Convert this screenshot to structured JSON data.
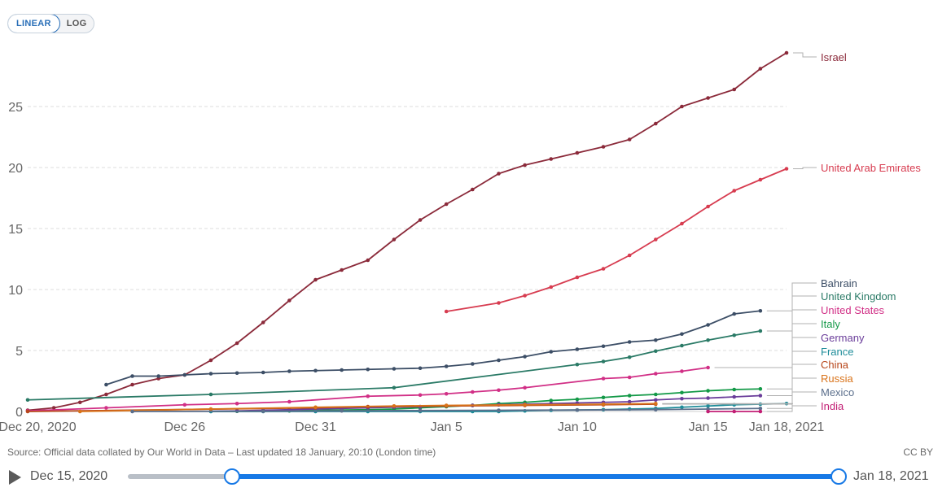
{
  "scale_toggle": {
    "linear": "LINEAR",
    "log": "LOG",
    "selected": "LINEAR"
  },
  "footer": {
    "source": "Source: Official data collated by Our World in Data – Last updated 18 January, 20:10 (London time)",
    "license": "CC BY"
  },
  "timeline": {
    "start_label": "Dec 15, 2020",
    "end_label": "Jan 18, 2021",
    "accent": "#1779e6"
  },
  "chart_data": {
    "type": "line",
    "title": "",
    "xlabel": "",
    "ylabel": "",
    "x_domain": [
      "2020-12-20",
      "2021-01-18"
    ],
    "ylim": [
      0,
      30
    ],
    "y_ticks": [
      0,
      5,
      10,
      15,
      20,
      25
    ],
    "x_ticks": [
      {
        "date": "2020-12-20",
        "label": "Dec 20, 2020"
      },
      {
        "date": "2020-12-26",
        "label": "Dec 26"
      },
      {
        "date": "2020-12-31",
        "label": "Dec 31"
      },
      {
        "date": "2021-01-05",
        "label": "Jan 5"
      },
      {
        "date": "2021-01-10",
        "label": "Jan 10"
      },
      {
        "date": "2021-01-15",
        "label": "Jan 15"
      },
      {
        "date": "2021-01-18",
        "label": "Jan 18, 2021"
      }
    ],
    "grid": "horizontal dashed",
    "series": [
      {
        "name": "Israel",
        "color": "#8b2a3a",
        "points": [
          [
            "2020-12-20",
            0.1
          ],
          [
            "2020-12-21",
            0.3
          ],
          [
            "2020-12-22",
            0.75
          ],
          [
            "2020-12-23",
            1.4
          ],
          [
            "2020-12-24",
            2.2
          ],
          [
            "2020-12-25",
            2.7
          ],
          [
            "2020-12-26",
            3.0
          ],
          [
            "2020-12-27",
            4.2
          ],
          [
            "2020-12-28",
            5.6
          ],
          [
            "2020-12-29",
            7.3
          ],
          [
            "2020-12-30",
            9.1
          ],
          [
            "2020-12-31",
            10.8
          ],
          [
            "2021-01-01",
            11.6
          ],
          [
            "2021-01-02",
            12.4
          ],
          [
            "2021-01-03",
            14.1
          ],
          [
            "2021-01-04",
            15.7
          ],
          [
            "2021-01-05",
            17.0
          ],
          [
            "2021-01-06",
            18.2
          ],
          [
            "2021-01-07",
            19.5
          ],
          [
            "2021-01-08",
            20.2
          ],
          [
            "2021-01-09",
            20.7
          ],
          [
            "2021-01-10",
            21.2
          ],
          [
            "2021-01-11",
            21.7
          ],
          [
            "2021-01-12",
            22.3
          ],
          [
            "2021-01-13",
            23.6
          ],
          [
            "2021-01-14",
            25.0
          ],
          [
            "2021-01-15",
            25.7
          ],
          [
            "2021-01-16",
            26.4
          ],
          [
            "2021-01-17",
            28.1
          ],
          [
            "2021-01-18",
            29.4
          ]
        ]
      },
      {
        "name": "United Arab Emirates",
        "color": "#d73c50",
        "points": [
          [
            "2021-01-05",
            8.2
          ],
          [
            "2021-01-07",
            8.9
          ],
          [
            "2021-01-08",
            9.5
          ],
          [
            "2021-01-09",
            10.2
          ],
          [
            "2021-01-10",
            11.0
          ],
          [
            "2021-01-11",
            11.7
          ],
          [
            "2021-01-12",
            12.8
          ],
          [
            "2021-01-13",
            14.1
          ],
          [
            "2021-01-14",
            15.4
          ],
          [
            "2021-01-15",
            16.8
          ],
          [
            "2021-01-16",
            18.1
          ],
          [
            "2021-01-17",
            19.0
          ],
          [
            "2021-01-18",
            19.9
          ]
        ]
      },
      {
        "name": "Bahrain",
        "color": "#3c4e66",
        "points": [
          [
            "2020-12-23",
            2.2
          ],
          [
            "2020-12-24",
            2.9
          ],
          [
            "2020-12-25",
            2.9
          ],
          [
            "2020-12-26",
            3.0
          ],
          [
            "2020-12-27",
            3.1
          ],
          [
            "2020-12-28",
            3.15
          ],
          [
            "2020-12-29",
            3.2
          ],
          [
            "2020-12-30",
            3.3
          ],
          [
            "2020-12-31",
            3.35
          ],
          [
            "2021-01-01",
            3.4
          ],
          [
            "2021-01-02",
            3.45
          ],
          [
            "2021-01-03",
            3.5
          ],
          [
            "2021-01-04",
            3.55
          ],
          [
            "2021-01-05",
            3.7
          ],
          [
            "2021-01-06",
            3.9
          ],
          [
            "2021-01-07",
            4.2
          ],
          [
            "2021-01-08",
            4.5
          ],
          [
            "2021-01-09",
            4.9
          ],
          [
            "2021-01-10",
            5.1
          ],
          [
            "2021-01-11",
            5.35
          ],
          [
            "2021-01-12",
            5.7
          ],
          [
            "2021-01-13",
            5.85
          ],
          [
            "2021-01-14",
            6.35
          ],
          [
            "2021-01-15",
            7.1
          ],
          [
            "2021-01-16",
            8.0
          ],
          [
            "2021-01-17",
            8.25
          ]
        ]
      },
      {
        "name": "United Kingdom",
        "color": "#2a7a66",
        "points": [
          [
            "2020-12-20",
            0.95
          ],
          [
            "2020-12-27",
            1.4
          ],
          [
            "2021-01-03",
            1.95
          ],
          [
            "2021-01-10",
            3.85
          ],
          [
            "2021-01-11",
            4.1
          ],
          [
            "2021-01-12",
            4.45
          ],
          [
            "2021-01-13",
            4.95
          ],
          [
            "2021-01-14",
            5.4
          ],
          [
            "2021-01-15",
            5.85
          ],
          [
            "2021-01-16",
            6.25
          ],
          [
            "2021-01-17",
            6.6
          ]
        ]
      },
      {
        "name": "United States",
        "color": "#d12f86",
        "points": [
          [
            "2020-12-20",
            0.05
          ],
          [
            "2020-12-23",
            0.3
          ],
          [
            "2020-12-26",
            0.55
          ],
          [
            "2020-12-28",
            0.65
          ],
          [
            "2020-12-30",
            0.8
          ],
          [
            "2021-01-02",
            1.25
          ],
          [
            "2021-01-04",
            1.35
          ],
          [
            "2021-01-05",
            1.45
          ],
          [
            "2021-01-06",
            1.6
          ],
          [
            "2021-01-07",
            1.75
          ],
          [
            "2021-01-08",
            1.95
          ],
          [
            "2021-01-11",
            2.7
          ],
          [
            "2021-01-12",
            2.8
          ],
          [
            "2021-01-13",
            3.1
          ],
          [
            "2021-01-14",
            3.3
          ],
          [
            "2021-01-15",
            3.6
          ]
        ]
      },
      {
        "name": "Italy",
        "color": "#139947",
        "points": [
          [
            "2020-12-27",
            0.01
          ],
          [
            "2020-12-28",
            0.02
          ],
          [
            "2020-12-29",
            0.03
          ],
          [
            "2020-12-30",
            0.05
          ],
          [
            "2020-12-31",
            0.1
          ],
          [
            "2021-01-01",
            0.12
          ],
          [
            "2021-01-02",
            0.15
          ],
          [
            "2021-01-03",
            0.2
          ],
          [
            "2021-01-04",
            0.3
          ],
          [
            "2021-01-05",
            0.4
          ],
          [
            "2021-01-06",
            0.5
          ],
          [
            "2021-01-07",
            0.65
          ],
          [
            "2021-01-08",
            0.75
          ],
          [
            "2021-01-09",
            0.9
          ],
          [
            "2021-01-10",
            1.0
          ],
          [
            "2021-01-11",
            1.15
          ],
          [
            "2021-01-12",
            1.3
          ],
          [
            "2021-01-13",
            1.4
          ],
          [
            "2021-01-14",
            1.55
          ],
          [
            "2021-01-15",
            1.7
          ],
          [
            "2021-01-16",
            1.8
          ],
          [
            "2021-01-17",
            1.85
          ]
        ]
      },
      {
        "name": "Germany",
        "color": "#6a3d9a",
        "points": [
          [
            "2020-12-27",
            0.02
          ],
          [
            "2020-12-28",
            0.05
          ],
          [
            "2020-12-29",
            0.1
          ],
          [
            "2020-12-30",
            0.15
          ],
          [
            "2020-12-31",
            0.2
          ],
          [
            "2021-01-01",
            0.25
          ],
          [
            "2021-01-02",
            0.3
          ],
          [
            "2021-01-03",
            0.35
          ],
          [
            "2021-01-04",
            0.4
          ],
          [
            "2021-01-05",
            0.45
          ],
          [
            "2021-01-06",
            0.5
          ],
          [
            "2021-01-07",
            0.55
          ],
          [
            "2021-01-08",
            0.6
          ],
          [
            "2021-01-09",
            0.65
          ],
          [
            "2021-01-10",
            0.7
          ],
          [
            "2021-01-11",
            0.75
          ],
          [
            "2021-01-12",
            0.8
          ],
          [
            "2021-01-13",
            0.95
          ],
          [
            "2021-01-14",
            1.05
          ],
          [
            "2021-01-15",
            1.1
          ],
          [
            "2021-01-16",
            1.2
          ],
          [
            "2021-01-17",
            1.3
          ]
        ]
      },
      {
        "name": "France",
        "color": "#1e8c99",
        "points": [
          [
            "2020-12-27",
            0.0
          ],
          [
            "2020-12-29",
            0.0
          ],
          [
            "2020-12-31",
            0.0
          ],
          [
            "2021-01-02",
            0.0
          ],
          [
            "2021-01-04",
            0.0
          ],
          [
            "2021-01-06",
            0.0
          ],
          [
            "2021-01-07",
            0.0
          ],
          [
            "2021-01-08",
            0.05
          ],
          [
            "2021-01-09",
            0.1
          ],
          [
            "2021-01-10",
            0.12
          ],
          [
            "2021-01-11",
            0.15
          ],
          [
            "2021-01-12",
            0.2
          ],
          [
            "2021-01-13",
            0.25
          ],
          [
            "2021-01-14",
            0.35
          ],
          [
            "2021-01-15",
            0.45
          ],
          [
            "2021-01-16",
            0.55
          ],
          [
            "2021-01-17",
            0.6
          ],
          [
            "2021-01-18",
            0.65
          ]
        ]
      },
      {
        "name": "China",
        "color": "#b7471c",
        "points": [
          [
            "2020-12-20",
            0.0
          ],
          [
            "2020-12-31",
            0.3
          ],
          [
            "2021-01-02",
            0.4
          ],
          [
            "2021-01-05",
            0.45
          ],
          [
            "2021-01-08",
            0.5
          ],
          [
            "2021-01-11",
            0.55
          ],
          [
            "2021-01-13",
            0.6
          ]
        ]
      },
      {
        "name": "Russia",
        "color": "#d9731a",
        "points": [
          [
            "2020-12-22",
            0.0
          ],
          [
            "2020-12-27",
            0.2
          ],
          [
            "2020-12-31",
            0.35
          ],
          [
            "2021-01-03",
            0.45
          ],
          [
            "2021-01-05",
            0.5
          ],
          [
            "2021-01-08",
            0.55
          ],
          [
            "2021-01-11",
            0.6
          ],
          [
            "2021-01-13",
            0.65
          ]
        ]
      },
      {
        "name": "Mexico",
        "color": "#5b6f8c",
        "points": [
          [
            "2020-12-24",
            0.0
          ],
          [
            "2020-12-29",
            0.02
          ],
          [
            "2021-01-01",
            0.05
          ],
          [
            "2021-01-04",
            0.08
          ],
          [
            "2021-01-07",
            0.1
          ],
          [
            "2021-01-10",
            0.12
          ],
          [
            "2021-01-13",
            0.15
          ],
          [
            "2021-01-15",
            0.2
          ],
          [
            "2021-01-17",
            0.25
          ]
        ]
      },
      {
        "name": "India",
        "color": "#c21e74",
        "points": [
          [
            "2021-01-15",
            0.0
          ],
          [
            "2021-01-16",
            0.0
          ],
          [
            "2021-01-17",
            0.0
          ]
        ]
      }
    ]
  }
}
